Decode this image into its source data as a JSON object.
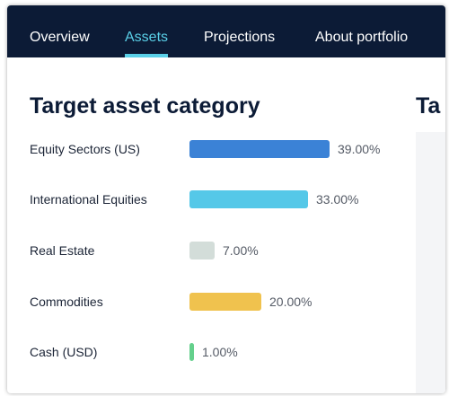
{
  "nav": {
    "tabs": [
      {
        "label": "Overview",
        "active": false
      },
      {
        "label": "Assets",
        "active": true
      },
      {
        "label": "Projections",
        "active": false
      },
      {
        "label": "About portfolio",
        "active": false
      }
    ],
    "active_color": "#5ad0e8",
    "background": "#0c1b36"
  },
  "panel": {
    "title": "Target asset category",
    "rows": [
      {
        "label": "Equity Sectors (US)",
        "value_text": "39.00%",
        "value": 39.0,
        "color": "#3b82d6"
      },
      {
        "label": "International Equities",
        "value_text": "33.00%",
        "value": 33.0,
        "color": "#55c8e8"
      },
      {
        "label": "Real Estate",
        "value_text": "7.00%",
        "value": 7.0,
        "color": "#d3ddd9"
      },
      {
        "label": "Commodities",
        "value_text": "20.00%",
        "value": 20.0,
        "color": "#f0c24e"
      },
      {
        "label": "Cash (USD)",
        "value_text": "1.00%",
        "value": 1.0,
        "color": "#64d08c"
      }
    ]
  },
  "panel2": {
    "title_fragment": "Ta"
  }
}
